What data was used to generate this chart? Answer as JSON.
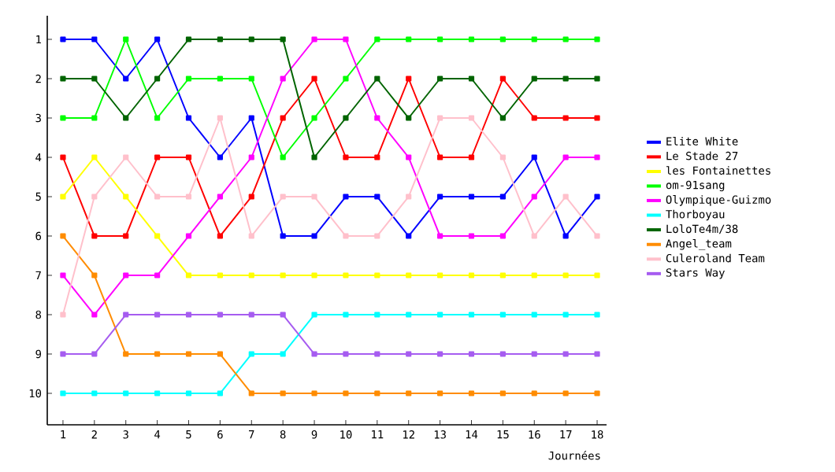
{
  "chart_data": {
    "type": "line",
    "xlabel": "Journées",
    "x": [
      1,
      2,
      3,
      4,
      5,
      6,
      7,
      8,
      9,
      10,
      11,
      12,
      13,
      14,
      15,
      16,
      17,
      18
    ],
    "xlim": [
      0.5,
      18.3
    ],
    "xticks": [
      1,
      2,
      3,
      4,
      5,
      6,
      7,
      8,
      9,
      10,
      11,
      12,
      13,
      14,
      15,
      16,
      17,
      18
    ],
    "ylim": [
      10.8,
      0.4
    ],
    "yticks": [
      1,
      2,
      3,
      4,
      5,
      6,
      7,
      8,
      9,
      10
    ],
    "grid": false,
    "legend": "right",
    "marker": "square",
    "line_style": "solid",
    "series": [
      {
        "name": "Elite White",
        "color": "#0000ff",
        "values": [
          1,
          1,
          2,
          1,
          3,
          4,
          3,
          6,
          6,
          5,
          5,
          6,
          5,
          5,
          5,
          4,
          6,
          5
        ]
      },
      {
        "name": "Le Stade 27",
        "color": "#ff0000",
        "values": [
          4,
          6,
          6,
          4,
          4,
          6,
          5,
          3,
          2,
          4,
          4,
          2,
          4,
          4,
          2,
          3,
          3,
          3
        ]
      },
      {
        "name": "les Fontainettes",
        "color": "#ffff00",
        "values": [
          5,
          4,
          5,
          6,
          7,
          7,
          7,
          7,
          7,
          7,
          7,
          7,
          7,
          7,
          7,
          7,
          7,
          7
        ]
      },
      {
        "name": "om-91sang",
        "color": "#00ff00",
        "values": [
          3,
          3,
          1,
          3,
          2,
          2,
          2,
          4,
          3,
          2,
          1,
          1,
          1,
          1,
          1,
          1,
          1,
          1
        ]
      },
      {
        "name": "Olympique-Guizmo",
        "color": "#ff00ff",
        "values": [
          7,
          8,
          7,
          7,
          6,
          5,
          4,
          2,
          1,
          1,
          3,
          4,
          6,
          6,
          6,
          5,
          4,
          4
        ]
      },
      {
        "name": "Thorboyau",
        "color": "#00ffff",
        "values": [
          10,
          10,
          10,
          10,
          10,
          10,
          9,
          9,
          8,
          8,
          8,
          8,
          8,
          8,
          8,
          8,
          8,
          8
        ]
      },
      {
        "name": "LoloTe4m/38",
        "color": "#006400",
        "values": [
          2,
          2,
          3,
          2,
          1,
          1,
          1,
          1,
          4,
          3,
          2,
          3,
          2,
          2,
          3,
          2,
          2,
          2
        ]
      },
      {
        "name": "Angel_team",
        "color": "#ff8c00",
        "values": [
          6,
          7,
          9,
          9,
          9,
          9,
          10,
          10,
          10,
          10,
          10,
          10,
          10,
          10,
          10,
          10,
          10,
          10
        ]
      },
      {
        "name": "Culeroland Team",
        "color": "#ffc0cb",
        "values": [
          8,
          5,
          4,
          5,
          5,
          3,
          6,
          5,
          5,
          6,
          6,
          5,
          3,
          3,
          4,
          6,
          5,
          6
        ]
      },
      {
        "name": "Stars Way",
        "color": "#a65cf0",
        "values": [
          9,
          9,
          8,
          8,
          8,
          8,
          8,
          8,
          9,
          9,
          9,
          9,
          9,
          9,
          9,
          9,
          9,
          9
        ]
      }
    ]
  }
}
